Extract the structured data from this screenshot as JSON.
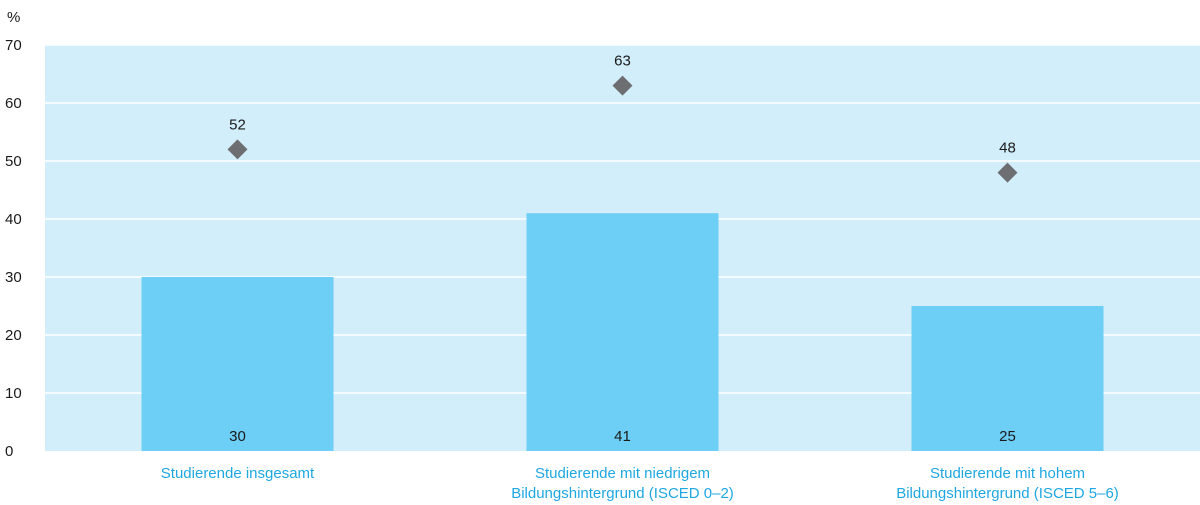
{
  "chart_data": {
    "type": "bar",
    "ylabel": "%",
    "ylim": [
      0,
      70
    ],
    "yticks": [
      "0",
      "10",
      "20",
      "30",
      "40",
      "50",
      "60",
      "70"
    ],
    "categories": [
      [
        "Studierende insgesamt"
      ],
      [
        "Studierende mit niedrigem",
        "Bildungshintergrund (ISCED 0–2)"
      ],
      [
        "Studierende mit hohem",
        "Bildungshintergrund (ISCED 5–6)"
      ]
    ],
    "series": [
      {
        "type": "bar",
        "values": [
          30,
          41,
          25
        ],
        "color": "#6dcff6"
      },
      {
        "type": "marker",
        "marker": "diamond",
        "values": [
          52,
          63,
          48
        ],
        "color": "#6d6e71"
      }
    ],
    "background_color": "#d2eefb",
    "category_label_color": "#1ea7e1",
    "grid": true
  }
}
